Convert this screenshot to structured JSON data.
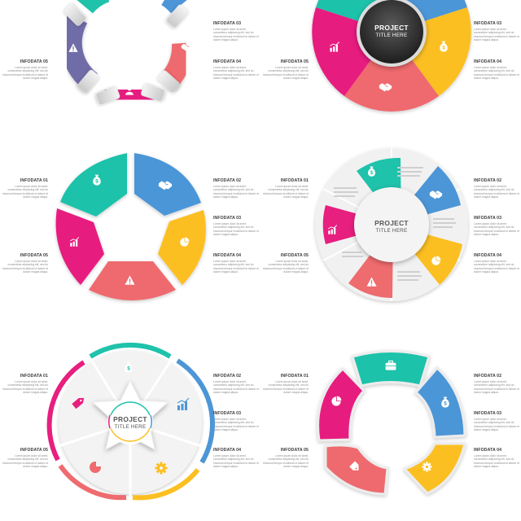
{
  "palette": {
    "teal": "#1fc2aa",
    "blue": "#4c96d7",
    "yellow": "#fcbf22",
    "salmon": "#ee6b6e",
    "pink": "#e71f7f",
    "purple": "#6f6ca8"
  },
  "lorem": "Lorem ipsum dolor sit amet, consectetur adipiscing elit, sed do eiusmod tempor incididunt ut labore et dolore magna aliqua.",
  "labels": {
    "i1": "INFODATA 01",
    "i2": "INFODATA 02",
    "i3": "INFODATA 03",
    "i4": "INFODATA 04",
    "i5": "INFODATA 05"
  },
  "center": {
    "line1": "PROJECT",
    "line2": "TITLE HERE"
  },
  "icons": [
    "money-bag-icon",
    "handshake-icon",
    "pie-chart-icon",
    "warning-icon",
    "bar-chart-icon",
    "user-icon",
    "briefcase-icon",
    "tag-icon",
    "gear-icon"
  ]
}
